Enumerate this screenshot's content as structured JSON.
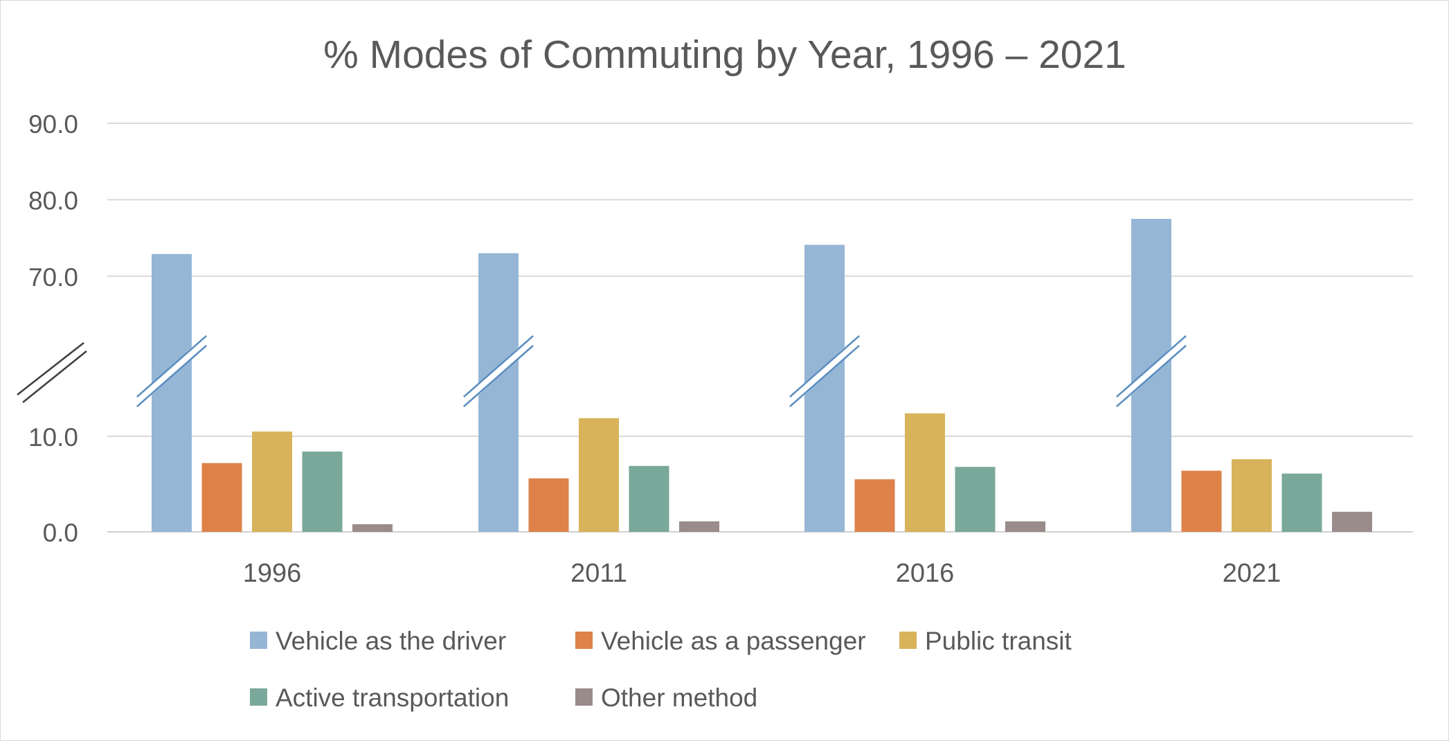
{
  "chart_data": {
    "type": "bar",
    "title": "% Modes of Commuting by Year, 1996 – 2021",
    "categories": [
      "1996",
      "2011",
      "2016",
      "2021"
    ],
    "series": [
      {
        "name": "Vehicle as the driver",
        "color": "#96B6D5",
        "values": [
          72.9,
          73.0,
          74.1,
          77.5
        ]
      },
      {
        "name": "Vehicle as a passenger",
        "color": "#DE8249",
        "values": [
          7.2,
          5.6,
          5.5,
          6.4
        ]
      },
      {
        "name": "Public transit",
        "color": "#D8B35B",
        "values": [
          10.5,
          11.9,
          12.4,
          7.6
        ]
      },
      {
        "name": "Active transportation",
        "color": "#7AA89B",
        "values": [
          8.4,
          6.9,
          6.8,
          6.1
        ]
      },
      {
        "name": "Other method",
        "color": "#9A8C8B",
        "values": [
          0.8,
          1.1,
          1.1,
          2.1
        ]
      }
    ],
    "y_ticks": [
      "90.0",
      "80.0",
      "70.0",
      "10.0",
      "0.0"
    ],
    "axis_break": {
      "lower_range": [
        0,
        20
      ],
      "upper_range": [
        65,
        90
      ]
    },
    "xlabel": "",
    "ylabel": "",
    "legend_position": "bottom",
    "gridlines": true,
    "break_color": "#5B8EC0"
  }
}
